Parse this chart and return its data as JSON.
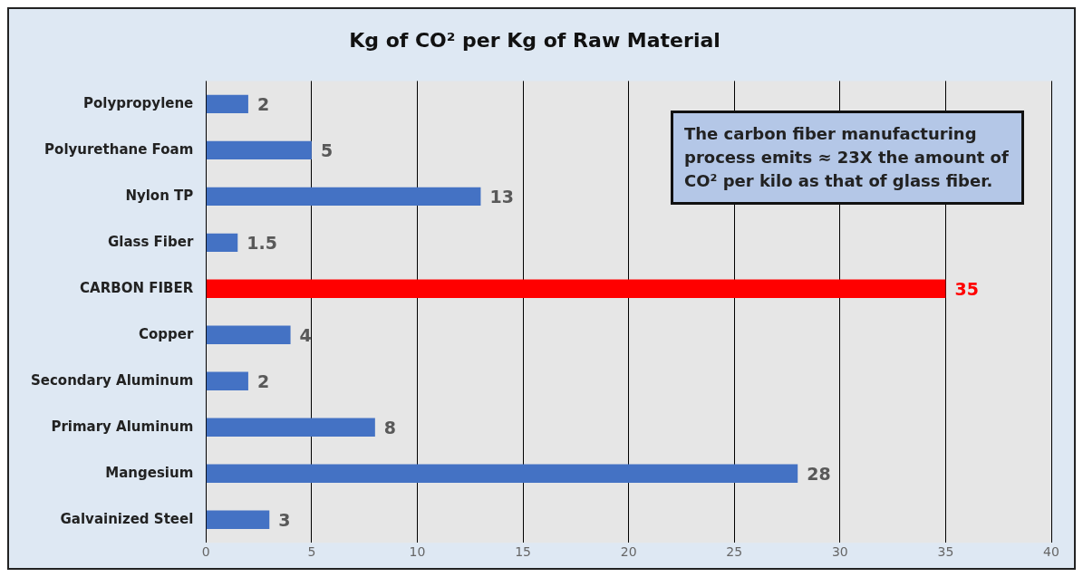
{
  "chart_data": {
    "type": "bar",
    "orientation": "horizontal",
    "title": "Kg of CO² per Kg of Raw Material",
    "categories": [
      "Polypropylene",
      "Polyurethane Foam",
      "Nylon TP",
      "Glass Fiber",
      "CARBON FIBER",
      "Copper",
      "Secondary Aluminum",
      "Primary Aluminum",
      "Mangesium",
      "Galvainized Steel"
    ],
    "values": [
      2,
      5,
      13,
      1.5,
      35,
      4,
      2,
      8,
      28,
      3
    ],
    "colors": [
      "#4472c4",
      "#4472c4",
      "#4472c4",
      "#4472c4",
      "#ff0000",
      "#4472c4",
      "#4472c4",
      "#4472c4",
      "#4472c4",
      "#4472c4"
    ],
    "xlim": [
      0,
      40
    ],
    "xticks": [
      0,
      5,
      10,
      15,
      20,
      25,
      30,
      35,
      40
    ],
    "grid": "x",
    "data_labels": true,
    "legend": false,
    "annotations": [
      "The carbon fiber manufacturing process emits ≈ 23X the amount of CO² per kilo as that of glass fiber."
    ]
  }
}
